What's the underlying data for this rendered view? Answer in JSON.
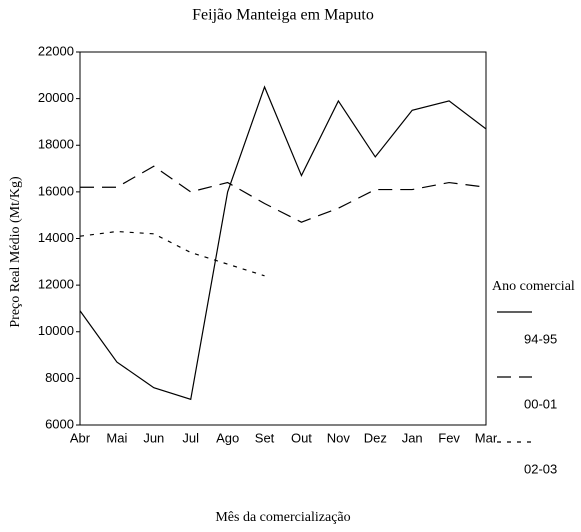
{
  "chart_data": {
    "type": "line",
    "title": "Feijão Manteiga em Maputo",
    "x_label": "Mês da comercialização",
    "y_label": "Preço Real Médio (Mt/Kg)",
    "legend_title": "Ano comercial",
    "legend": "right",
    "categories": [
      "Abr",
      "Mai",
      "Jun",
      "Jul",
      "Ago",
      "Set",
      "Out",
      "Nov",
      "Dez",
      "Jan",
      "Fev",
      "Mar"
    ],
    "series": [
      {
        "name": "94-95",
        "color": "#000000",
        "dash": "none",
        "values": [
          10900,
          8700,
          7600,
          7100,
          16000,
          20500,
          16700,
          19900,
          17500,
          19500,
          19900,
          18700
        ]
      },
      {
        "name": "00-01",
        "color": "#000000",
        "dash": "14,8",
        "values": [
          16200,
          16200,
          17100,
          16000,
          16400,
          15500,
          14700,
          15300,
          16100,
          16100,
          16400,
          16200
        ]
      },
      {
        "name": "02-03",
        "color": "#000000",
        "dash": "4,6",
        "values": [
          14100,
          14300,
          14200,
          13400,
          12900,
          12400,
          null,
          null,
          null,
          null,
          null,
          null
        ]
      }
    ],
    "ylim": [
      6000,
      22000
    ],
    "yticks": [
      6000,
      8000,
      10000,
      12000,
      14000,
      16000,
      18000,
      20000,
      22000
    ]
  }
}
